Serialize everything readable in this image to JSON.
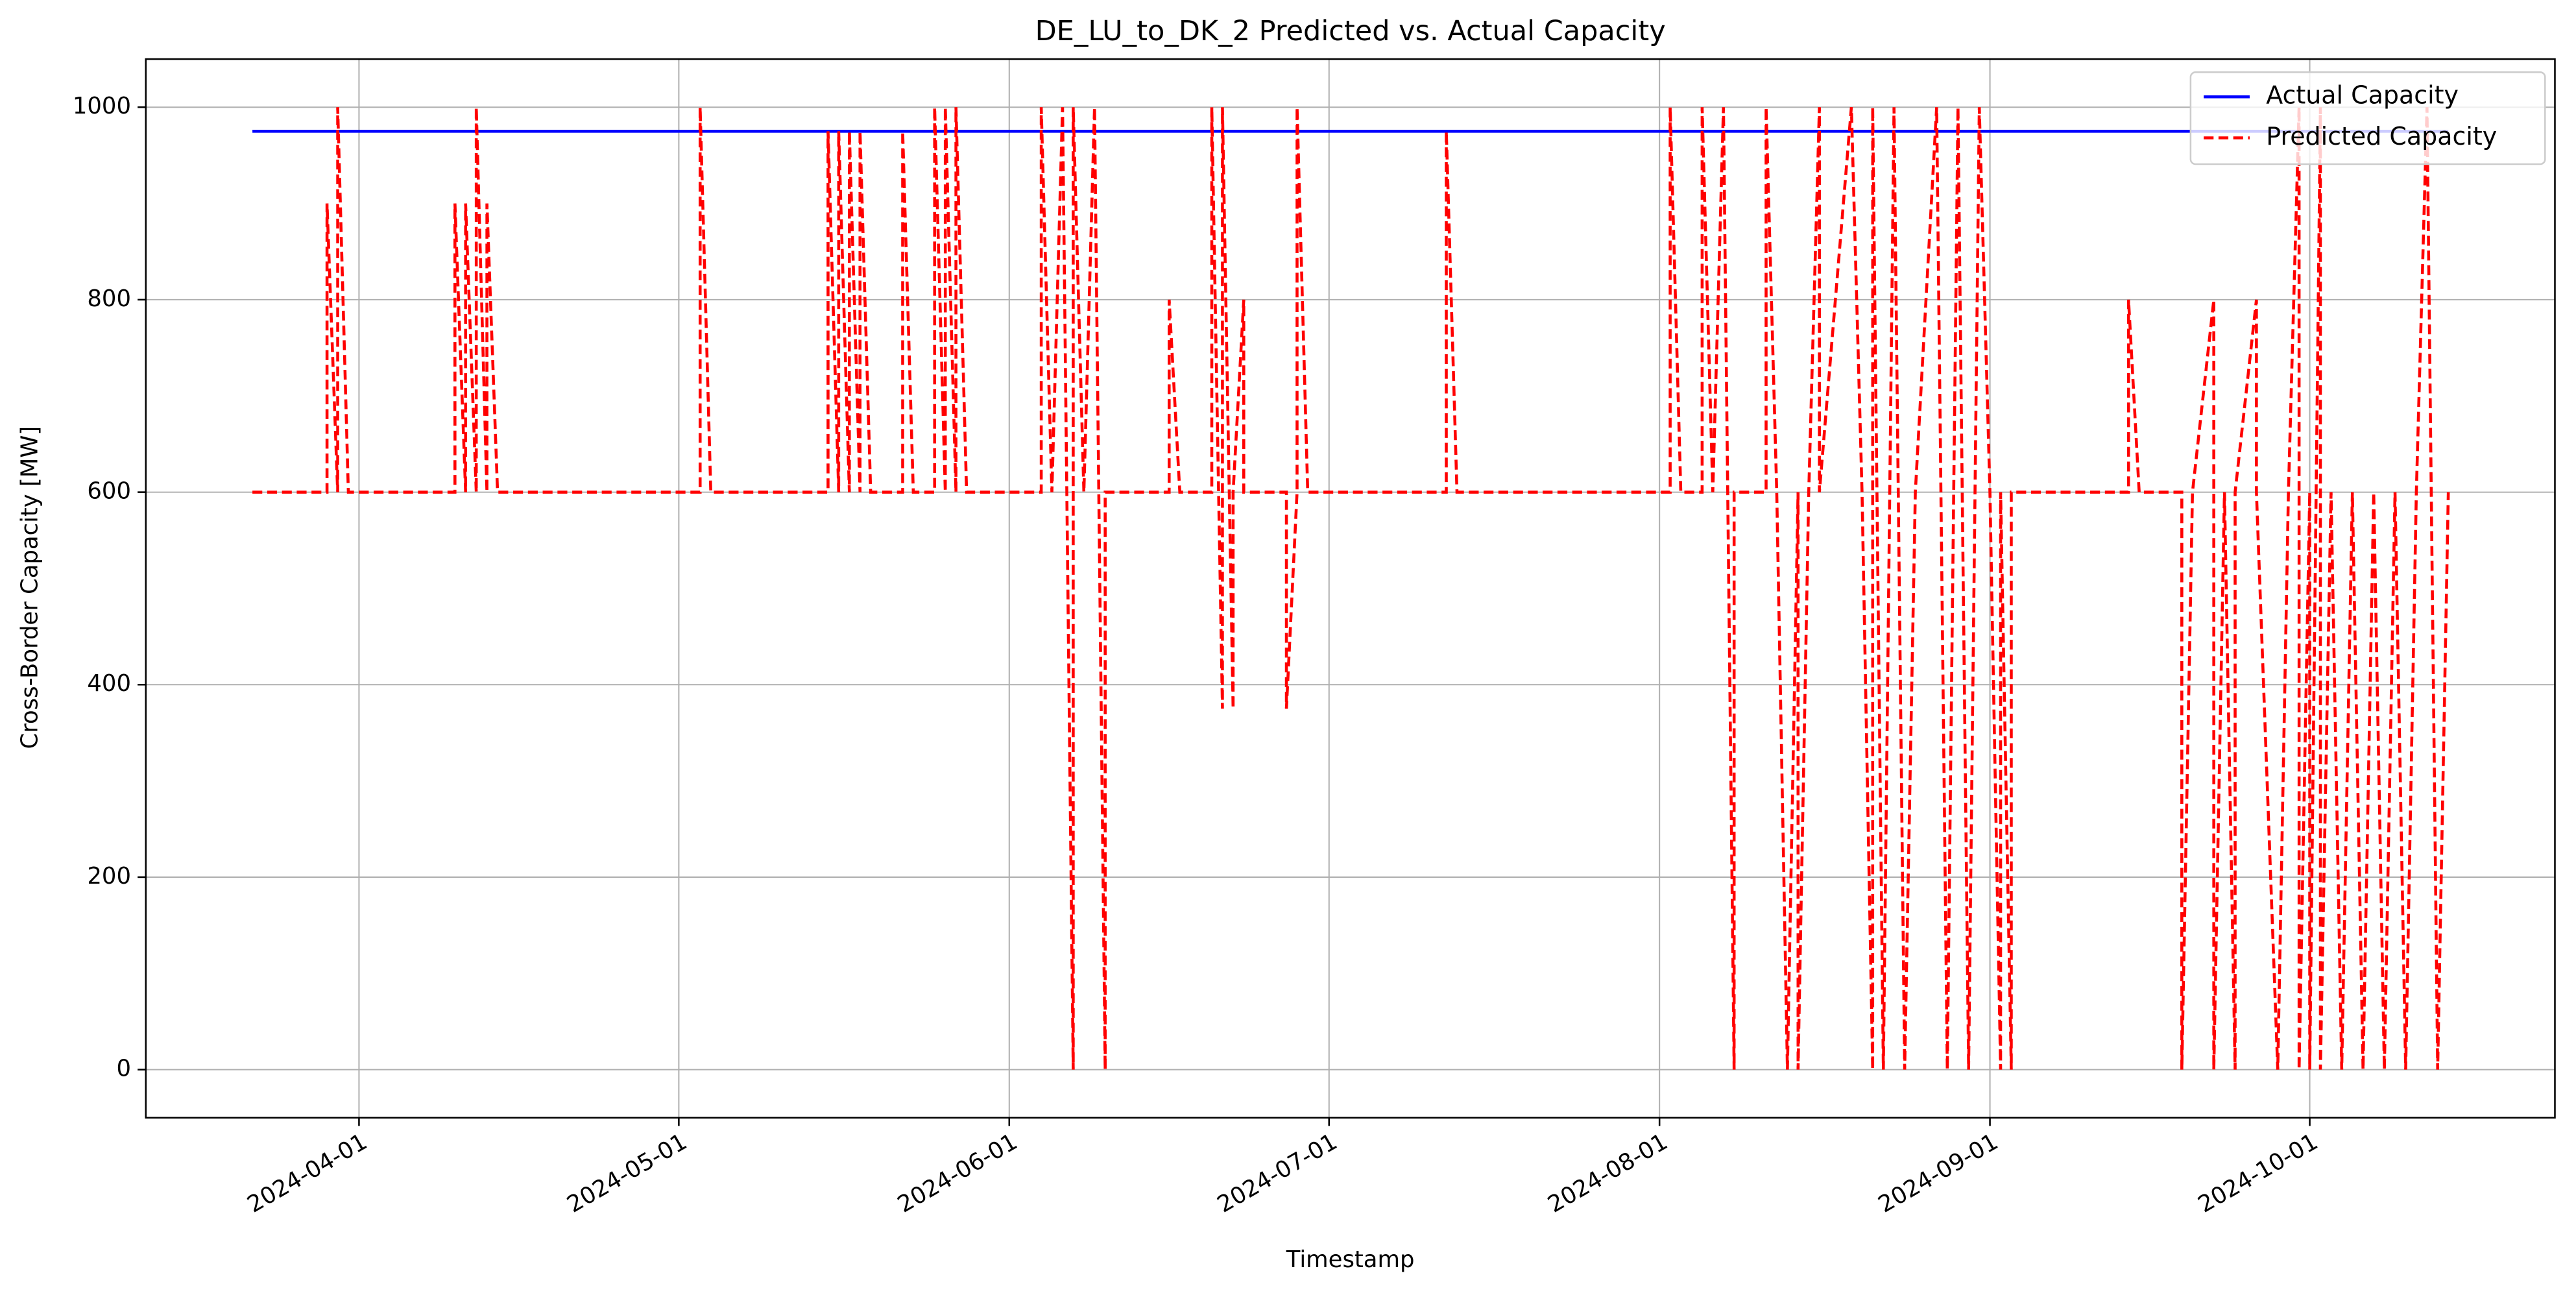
{
  "chart_data": {
    "type": "line",
    "title": "DE_LU_to_DK_2 Predicted vs. Actual Capacity",
    "x_label": "Timestamp",
    "y_label": "Cross-Border Capacity [MW]",
    "xlim": [
      "2024-03-12",
      "2024-10-24"
    ],
    "xticks": [
      "2024-04-01",
      "2024-05-01",
      "2024-06-01",
      "2024-07-01",
      "2024-08-01",
      "2024-09-01",
      "2024-10-01"
    ],
    "ylim": [
      -50,
      1050
    ],
    "yticks": [
      0,
      200,
      400,
      600,
      800,
      1000
    ],
    "grid": true,
    "legend": "upper right",
    "series": [
      {
        "name": "Actual Capacity",
        "color": "#0000ff",
        "dash": false,
        "x": [
          "2024-03-22",
          "2024-10-14"
        ],
        "values": [
          975,
          975
        ]
      },
      {
        "name": "Predicted Capacity",
        "color": "#ff0000",
        "dash": true,
        "x": [
          "2024-03-22",
          "2024-03-29",
          "2024-03-29",
          "2024-03-30",
          "2024-03-30",
          "2024-03-31",
          "2024-04-10",
          "2024-04-10",
          "2024-04-11",
          "2024-04-11",
          "2024-04-12",
          "2024-04-12",
          "2024-04-13",
          "2024-04-13",
          "2024-04-14",
          "2024-05-03",
          "2024-05-03",
          "2024-05-04",
          "2024-05-15",
          "2024-05-15",
          "2024-05-16",
          "2024-05-16",
          "2024-05-17",
          "2024-05-17",
          "2024-05-18",
          "2024-05-18",
          "2024-05-19",
          "2024-05-22",
          "2024-05-22",
          "2024-05-23",
          "2024-05-25",
          "2024-05-25",
          "2024-05-26",
          "2024-05-26",
          "2024-05-27",
          "2024-05-27",
          "2024-05-28",
          "2024-06-04",
          "2024-06-04",
          "2024-06-05",
          "2024-06-06",
          "2024-06-07",
          "2024-06-07",
          "2024-06-08",
          "2024-06-09",
          "2024-06-10",
          "2024-06-10",
          "2024-06-16",
          "2024-06-16",
          "2024-06-17",
          "2024-06-20",
          "2024-06-20",
          "2024-06-21",
          "2024-06-21",
          "2024-06-22",
          "2024-06-22",
          "2024-06-23",
          "2024-06-23",
          "2024-06-27",
          "2024-06-27",
          "2024-06-28",
          "2024-06-28",
          "2024-06-29",
          "2024-07-12",
          "2024-07-12",
          "2024-07-13",
          "2024-08-02",
          "2024-08-02",
          "2024-08-03",
          "2024-08-05",
          "2024-08-05",
          "2024-08-06",
          "2024-08-07",
          "2024-08-08",
          "2024-08-08",
          "2024-08-11",
          "2024-08-11",
          "2024-08-12",
          "2024-08-13",
          "2024-08-14",
          "2024-08-14",
          "2024-08-15",
          "2024-08-16",
          "2024-08-16",
          "2024-08-19",
          "2024-08-20",
          "2024-08-21",
          "2024-08-21",
          "2024-08-22",
          "2024-08-23",
          "2024-08-24",
          "2024-08-25",
          "2024-08-27",
          "2024-08-28",
          "2024-08-29",
          "2024-08-30",
          "2024-08-31",
          "2024-09-01",
          "2024-09-02",
          "2024-09-02",
          "2024-09-03",
          "2024-09-03",
          "2024-09-14",
          "2024-09-14",
          "2024-09-15",
          "2024-09-19",
          "2024-09-19",
          "2024-09-20",
          "2024-09-22",
          "2024-09-22",
          "2024-09-23",
          "2024-09-24",
          "2024-09-24",
          "2024-09-26",
          "2024-09-26",
          "2024-09-28",
          "2024-09-29",
          "2024-09-30",
          "2024-09-30",
          "2024-10-01",
          "2024-10-01",
          "2024-10-02",
          "2024-10-02",
          "2024-10-03",
          "2024-10-04",
          "2024-10-05",
          "2024-10-06",
          "2024-10-07",
          "2024-10-08",
          "2024-10-09",
          "2024-10-10",
          "2024-10-11",
          "2024-10-12",
          "2024-10-13",
          "2024-10-14"
        ],
        "values": [
          600,
          600,
          900,
          600,
          1000,
          600,
          600,
          900,
          600,
          900,
          600,
          1000,
          600,
          900,
          600,
          600,
          1000,
          600,
          600,
          975,
          600,
          975,
          600,
          975,
          600,
          975,
          600,
          600,
          975,
          600,
          600,
          1000,
          600,
          1000,
          600,
          1000,
          600,
          600,
          1000,
          600,
          1000,
          0,
          1000,
          600,
          1000,
          0,
          600,
          600,
          800,
          600,
          600,
          1000,
          375,
          1000,
          375,
          600,
          800,
          600,
          600,
          375,
          600,
          1000,
          600,
          600,
          975,
          600,
          600,
          1000,
          600,
          600,
          1000,
          600,
          1000,
          0,
          600,
          600,
          1000,
          600,
          0,
          600,
          0,
          600,
          1000,
          600,
          1000,
          600,
          0,
          1000,
          0,
          1000,
          0,
          600,
          1000,
          0,
          1000,
          0,
          1000,
          600,
          0,
          600,
          0,
          600,
          600,
          800,
          600,
          600,
          0,
          600,
          800,
          0,
          600,
          0,
          600,
          800,
          600,
          0,
          600,
          1000,
          0,
          600,
          0,
          1000,
          0,
          600,
          0,
          600,
          0,
          600,
          0,
          600,
          0,
          600,
          1000,
          0,
          600
        ]
      }
    ]
  }
}
